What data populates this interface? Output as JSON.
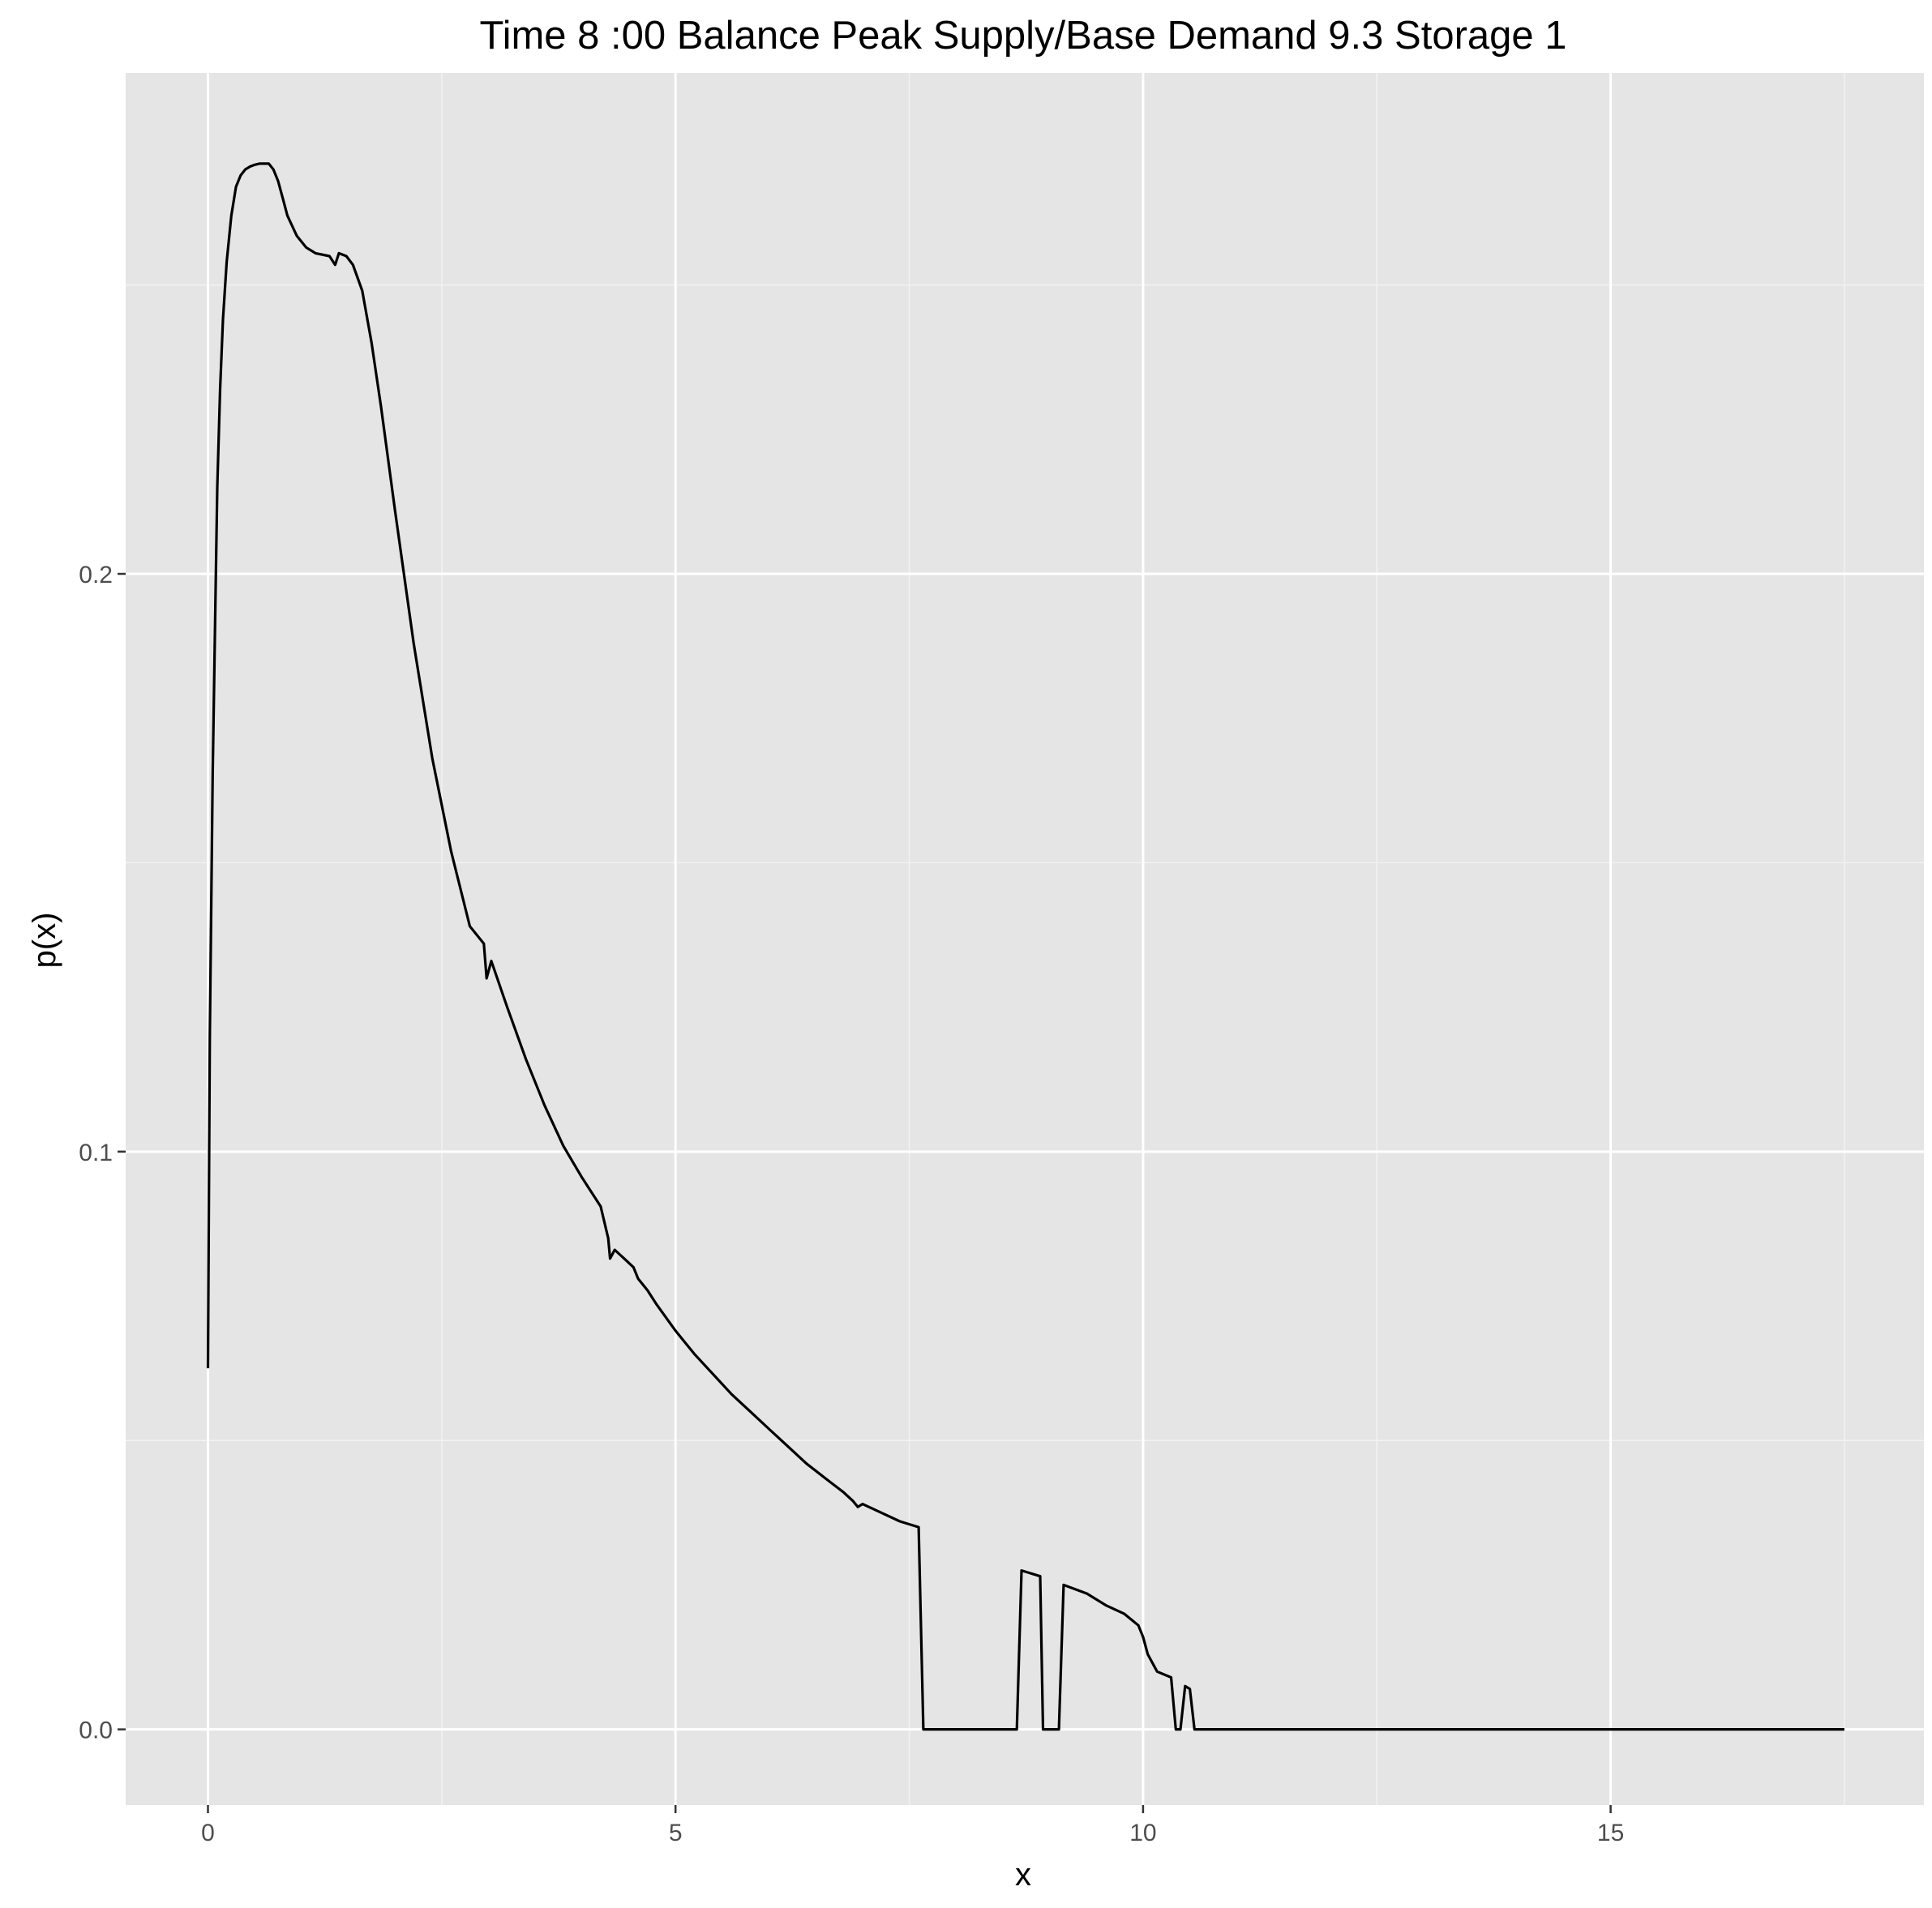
{
  "chart_data": {
    "type": "line",
    "title": "Time  8 :00  Balance   Peak Supply/Base Demand  9.3 Storage 1",
    "xlabel": "x",
    "ylabel": "p(x)",
    "xlim": [
      -0.88,
      18.35
    ],
    "ylim": [
      -0.0131,
      0.2867
    ],
    "x_ticks": [
      {
        "value": 0,
        "label": "0"
      },
      {
        "value": 5,
        "label": "5"
      },
      {
        "value": 10,
        "label": "10"
      },
      {
        "value": 15,
        "label": "15"
      }
    ],
    "y_ticks": [
      {
        "value": 0.0,
        "label": "0.0"
      },
      {
        "value": 0.1,
        "label": "0.1"
      },
      {
        "value": 0.2,
        "label": "0.2"
      }
    ],
    "grid": true,
    "series": [
      {
        "color": "#000000",
        "x": [
          0.0,
          0.02,
          0.05,
          0.08,
          0.1,
          0.13,
          0.16,
          0.2,
          0.25,
          0.3,
          0.35,
          0.4,
          0.45,
          0.5,
          0.55,
          0.65,
          0.7,
          0.75,
          0.8,
          0.85,
          0.95,
          1.05,
          1.15,
          1.3,
          1.36,
          1.4,
          1.48,
          1.55,
          1.65,
          1.75,
          1.85,
          2.0,
          2.2,
          2.4,
          2.6,
          2.8,
          2.95,
          2.98,
          3.03,
          3.2,
          3.4,
          3.6,
          3.8,
          4.0,
          4.2,
          4.28,
          4.3,
          4.35,
          4.45,
          4.55,
          4.6,
          4.7,
          4.8,
          5.0,
          5.2,
          5.4,
          5.6,
          5.8,
          6.0,
          6.2,
          6.4,
          6.6,
          6.8,
          6.9,
          6.95,
          7.0,
          7.2,
          7.4,
          7.6,
          7.65,
          8.65,
          8.7,
          8.9,
          8.93,
          9.1,
          9.15,
          9.4,
          9.6,
          9.8,
          9.95,
          10.0,
          10.05,
          10.15,
          10.3,
          10.35,
          10.4,
          10.45,
          10.5,
          10.55,
          10.6,
          10.8,
          17.5
        ],
        "y": [
          0.0625,
          0.12,
          0.165,
          0.195,
          0.215,
          0.232,
          0.244,
          0.254,
          0.262,
          0.267,
          0.269,
          0.27,
          0.2705,
          0.2708,
          0.271,
          0.271,
          0.27,
          0.268,
          0.265,
          0.262,
          0.2585,
          0.2565,
          0.2555,
          0.255,
          0.2535,
          0.2555,
          0.255,
          0.2535,
          0.249,
          0.24,
          0.229,
          0.211,
          0.188,
          0.168,
          0.152,
          0.139,
          0.136,
          0.13,
          0.133,
          0.125,
          0.116,
          0.108,
          0.101,
          0.0955,
          0.0905,
          0.085,
          0.0815,
          0.083,
          0.0815,
          0.08,
          0.078,
          0.076,
          0.0735,
          0.069,
          0.065,
          0.0615,
          0.058,
          0.055,
          0.052,
          0.049,
          0.046,
          0.0435,
          0.041,
          0.0395,
          0.0385,
          0.039,
          0.0375,
          0.036,
          0.035,
          0.0,
          0.0,
          0.0275,
          0.0265,
          0.0,
          0.0,
          0.025,
          0.0235,
          0.0215,
          0.02,
          0.018,
          0.016,
          0.013,
          0.01,
          0.009,
          0.0,
          0.0,
          0.0075,
          0.007,
          0.0,
          0.0,
          0.0,
          0.0
        ]
      }
    ]
  }
}
